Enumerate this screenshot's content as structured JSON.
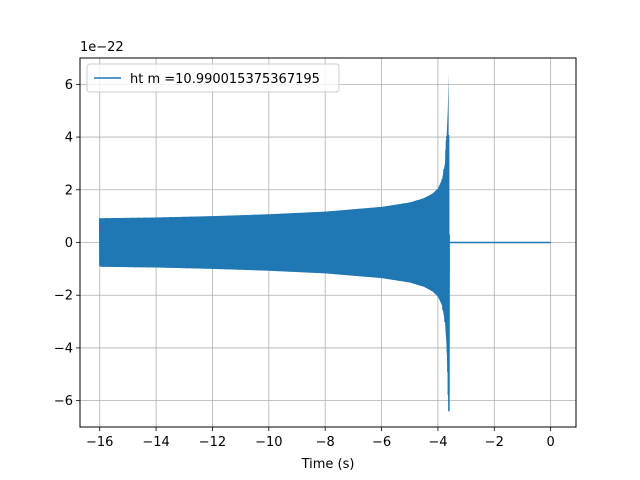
{
  "chart_data": {
    "type": "line",
    "title": "",
    "xlabel": "Time (s)",
    "ylabel": "",
    "y_offset_label": "1e−22",
    "xlim": [
      -16.7,
      0.9
    ],
    "ylim": [
      -7.0,
      7.0
    ],
    "xticks": [
      -16,
      -14,
      -12,
      -10,
      -8,
      -6,
      -4,
      -2,
      0
    ],
    "yticks": [
      -6,
      -4,
      -2,
      0,
      2,
      4,
      6
    ],
    "grid": true,
    "legend_position": "upper left",
    "series": [
      {
        "name": "ht m =10.990015375367195",
        "color": "#1f77b4",
        "envelope": {
          "x": [
            -16.0,
            -14.0,
            -12.0,
            -10.0,
            -8.0,
            -6.0,
            -5.0,
            -4.5,
            -4.2,
            -4.0,
            -3.85,
            -3.75,
            -3.7,
            -3.65,
            -3.62
          ],
          "y": [
            0.92,
            0.95,
            1.0,
            1.07,
            1.17,
            1.35,
            1.52,
            1.68,
            1.85,
            2.05,
            2.4,
            3.0,
            3.8,
            5.0,
            6.4
          ]
        },
        "tail": {
          "x": [
            -3.6,
            0.0
          ],
          "y": [
            0.0,
            0.0
          ]
        }
      }
    ]
  }
}
